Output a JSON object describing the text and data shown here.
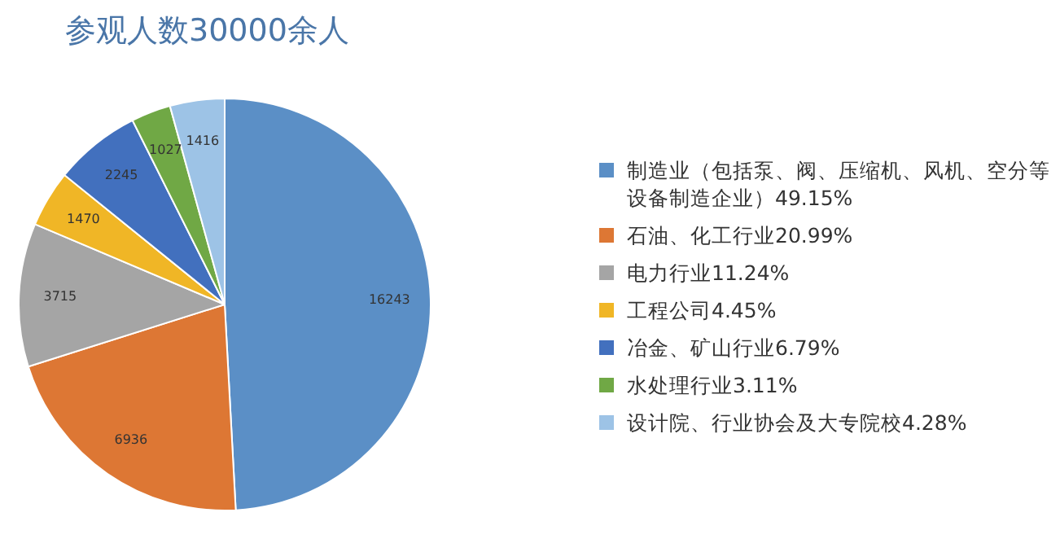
{
  "chart_data": {
    "type": "pie",
    "title": "参观人数30000余人",
    "categories": [
      "制造业（包括泵、阀、压缩机、风机、空分等设备制造企业）49.15%",
      "石油、化工行业20.99%",
      "电力行业11.24%",
      "工程公司4.45%",
      "冶金、矿山行业6.79%",
      "水处理行业3.11%",
      "设计院、行业协会及大专院校4.28%"
    ],
    "values": [
      16243,
      6936,
      3715,
      1470,
      2245,
      1027,
      1416
    ],
    "colors": [
      "#5b8fc6",
      "#dd7734",
      "#a5a5a5",
      "#f0b626",
      "#4270be",
      "#70a845",
      "#9dc3e6"
    ],
    "data_labels": true,
    "legend": "right"
  }
}
